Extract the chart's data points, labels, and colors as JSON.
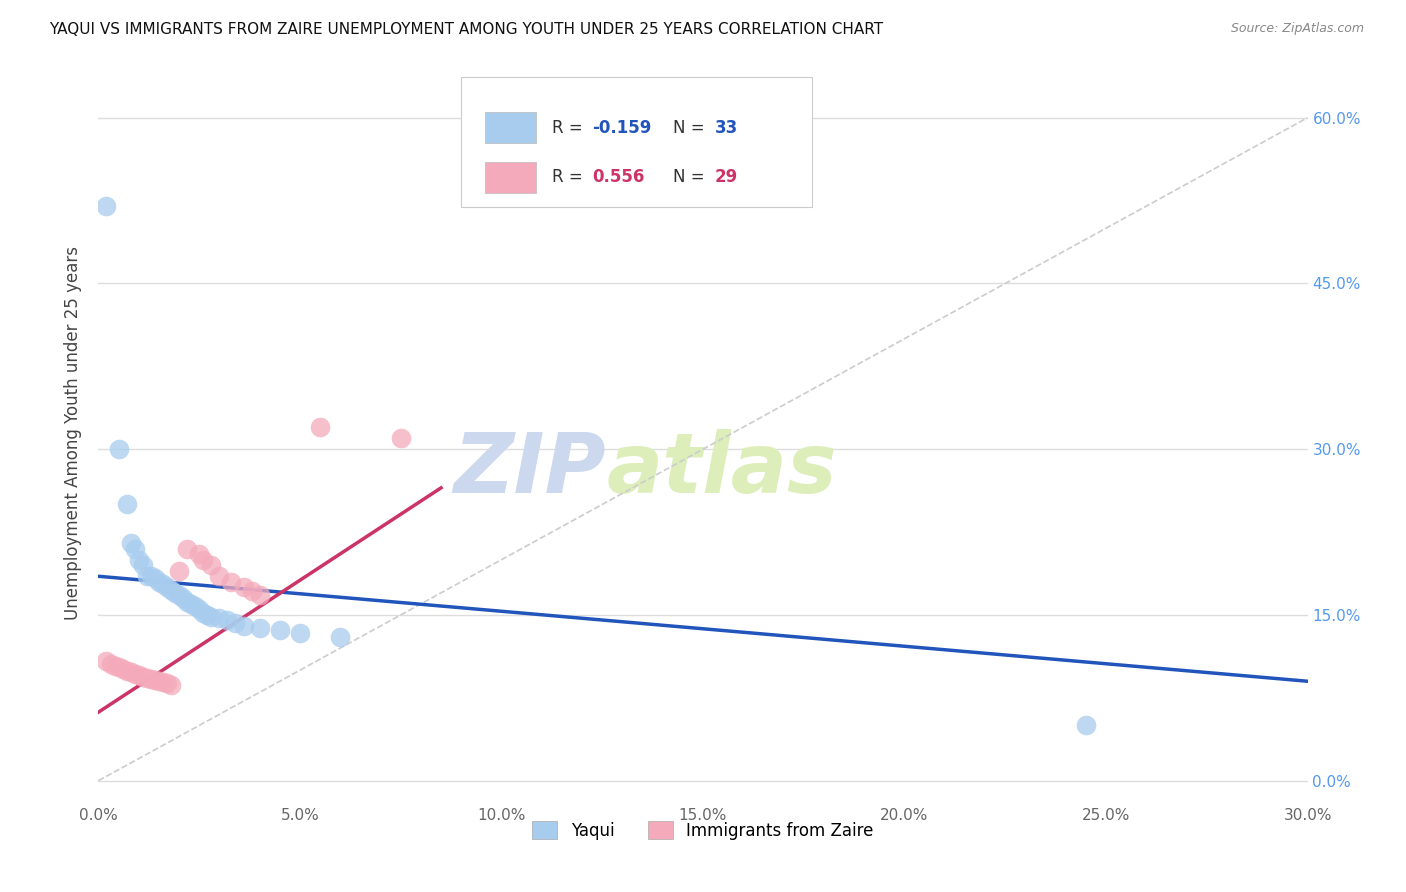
{
  "title": "YAQUI VS IMMIGRANTS FROM ZAIRE UNEMPLOYMENT AMONG YOUTH UNDER 25 YEARS CORRELATION CHART",
  "source": "Source: ZipAtlas.com",
  "ylabel": "Unemployment Among Youth under 25 years",
  "xlim": [
    0.0,
    0.3
  ],
  "ylim": [
    -0.02,
    0.65
  ],
  "xticks": [
    0.0,
    0.05,
    0.1,
    0.15,
    0.2,
    0.25,
    0.3
  ],
  "yticks": [
    0.0,
    0.15,
    0.3,
    0.45,
    0.6
  ],
  "watermark_zip": "ZIP",
  "watermark_atlas": "atlas",
  "yaqui_color": "#A8CCEE",
  "zaire_color": "#F4AABB",
  "line_yaqui_color": "#2255BB",
  "line_zaire_color": "#CC3366",
  "diagonal_color": "#CCCCCC",
  "yaqui_points": [
    [
      0.002,
      0.52
    ],
    [
      0.005,
      0.3
    ],
    [
      0.007,
      0.25
    ],
    [
      0.008,
      0.215
    ],
    [
      0.009,
      0.21
    ],
    [
      0.01,
      0.2
    ],
    [
      0.011,
      0.195
    ],
    [
      0.012,
      0.185
    ],
    [
      0.013,
      0.185
    ],
    [
      0.014,
      0.183
    ],
    [
      0.015,
      0.18
    ],
    [
      0.016,
      0.178
    ],
    [
      0.017,
      0.175
    ],
    [
      0.018,
      0.173
    ],
    [
      0.019,
      0.17
    ],
    [
      0.02,
      0.168
    ],
    [
      0.021,
      0.165
    ],
    [
      0.022,
      0.162
    ],
    [
      0.023,
      0.16
    ],
    [
      0.024,
      0.158
    ],
    [
      0.025,
      0.155
    ],
    [
      0.026,
      0.152
    ],
    [
      0.027,
      0.15
    ],
    [
      0.028,
      0.148
    ],
    [
      0.03,
      0.147
    ],
    [
      0.032,
      0.145
    ],
    [
      0.034,
      0.143
    ],
    [
      0.036,
      0.14
    ],
    [
      0.04,
      0.138
    ],
    [
      0.045,
      0.136
    ],
    [
      0.05,
      0.134
    ],
    [
      0.06,
      0.13
    ],
    [
      0.245,
      0.05
    ]
  ],
  "zaire_points": [
    [
      0.002,
      0.108
    ],
    [
      0.003,
      0.106
    ],
    [
      0.004,
      0.104
    ],
    [
      0.005,
      0.103
    ],
    [
      0.006,
      0.101
    ],
    [
      0.007,
      0.099
    ],
    [
      0.008,
      0.098
    ],
    [
      0.009,
      0.097
    ],
    [
      0.01,
      0.096
    ],
    [
      0.011,
      0.094
    ],
    [
      0.012,
      0.093
    ],
    [
      0.013,
      0.092
    ],
    [
      0.014,
      0.091
    ],
    [
      0.015,
      0.09
    ],
    [
      0.016,
      0.089
    ],
    [
      0.017,
      0.088
    ],
    [
      0.018,
      0.087
    ],
    [
      0.02,
      0.19
    ],
    [
      0.022,
      0.21
    ],
    [
      0.025,
      0.205
    ],
    [
      0.026,
      0.2
    ],
    [
      0.028,
      0.195
    ],
    [
      0.03,
      0.185
    ],
    [
      0.033,
      0.18
    ],
    [
      0.036,
      0.175
    ],
    [
      0.038,
      0.172
    ],
    [
      0.04,
      0.168
    ],
    [
      0.055,
      0.32
    ],
    [
      0.075,
      0.31
    ]
  ],
  "yaqui_line": {
    "x0": 0.0,
    "y0": 0.185,
    "x1": 0.3,
    "y1": 0.09
  },
  "zaire_line": {
    "x0": 0.0,
    "y0": 0.062,
    "x1": 0.085,
    "y1": 0.265
  },
  "diagonal_line": {
    "x0": 0.0,
    "y0": 0.0,
    "x1": 0.3,
    "y1": 0.6
  }
}
